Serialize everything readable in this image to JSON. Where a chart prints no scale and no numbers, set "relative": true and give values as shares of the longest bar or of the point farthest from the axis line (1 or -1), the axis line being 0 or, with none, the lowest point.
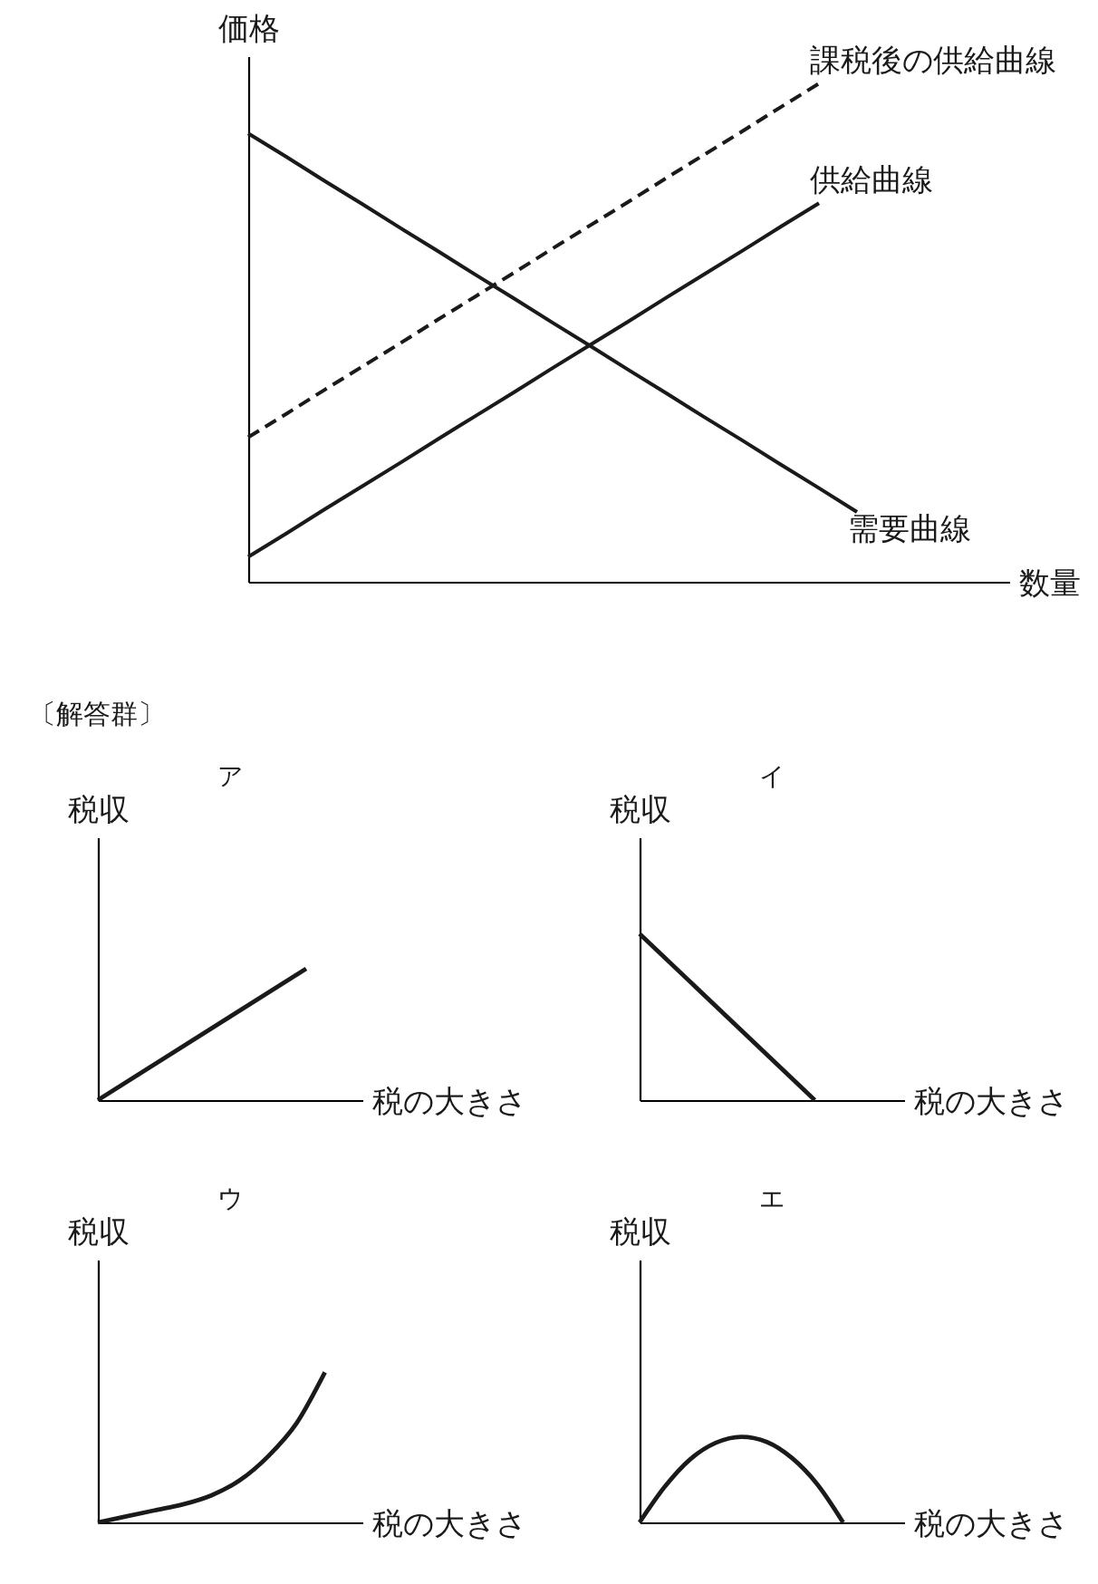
{
  "chart_data": [
    {
      "type": "line",
      "xlabel": "数量",
      "ylabel": "価格",
      "relative": true,
      "categories": [
        null,
        null,
        null,
        null,
        null,
        null,
        null,
        null,
        null,
        null,
        null,
        null,
        null,
        null,
        null,
        null,
        null
      ],
      "series": [
        {
          "name": "課税後の供給曲線",
          "color": "#1a1a1a",
          "line_style": "dashed",
          "values": [
            0.29,
            0.337,
            0.385,
            0.432,
            0.479,
            0.527,
            0.574,
            0.621,
            0.669,
            0.716,
            0.763,
            0.811,
            0.858,
            0.905,
            0.953,
            1.0,
            null
          ]
        },
        {
          "name": "供給曲線",
          "color": "#1a1a1a",
          "values": [
            0.05,
            0.097,
            0.145,
            0.192,
            0.239,
            0.287,
            0.334,
            0.381,
            0.429,
            0.476,
            0.523,
            0.571,
            0.618,
            0.665,
            0.713,
            0.76,
            null
          ]
        },
        {
          "name": "需要曲線",
          "color": "#1a1a1a",
          "values": [
            0.9,
            0.853,
            0.805,
            0.758,
            0.71,
            0.663,
            0.615,
            0.568,
            0.52,
            0.473,
            0.425,
            0.378,
            0.33,
            0.283,
            0.235,
            0.188,
            0.14
          ]
        }
      ]
    },
    {
      "type": "line",
      "title": "ア",
      "xlabel": "税の大きさ",
      "ylabel": "税収",
      "annotations": [
        "〔解答群〕"
      ],
      "relative": true,
      "categories": [
        null,
        null
      ],
      "series": [
        {
          "color": "#1a1a1a",
          "values": [
            0,
            1
          ]
        }
      ]
    },
    {
      "type": "line",
      "title": "イ",
      "xlabel": "税の大きさ",
      "ylabel": "税収",
      "relative": true,
      "categories": [
        null,
        null
      ],
      "series": [
        {
          "color": "#1a1a1a",
          "values": [
            1,
            0
          ]
        }
      ]
    },
    {
      "type": "line",
      "title": "ウ",
      "xlabel": "税の大きさ",
      "ylabel": "税収",
      "relative": true,
      "categories": [
        null,
        null,
        null,
        null,
        null,
        null,
        null,
        null,
        null
      ],
      "series": [
        {
          "color": "#1a1a1a",
          "values": [
            0,
            0.04,
            0.08,
            0.12,
            0.18,
            0.28,
            0.44,
            0.66,
            1.0
          ]
        }
      ]
    },
    {
      "type": "line",
      "title": "エ",
      "xlabel": "税の大きさ",
      "ylabel": "税収",
      "relative": true,
      "categories": [
        null,
        null,
        null,
        null,
        null,
        null,
        null,
        null,
        null
      ],
      "series": [
        {
          "color": "#1a1a1a",
          "values": [
            0,
            0.42,
            0.74,
            0.93,
            1.0,
            0.94,
            0.75,
            0.44,
            0
          ]
        }
      ]
    }
  ]
}
